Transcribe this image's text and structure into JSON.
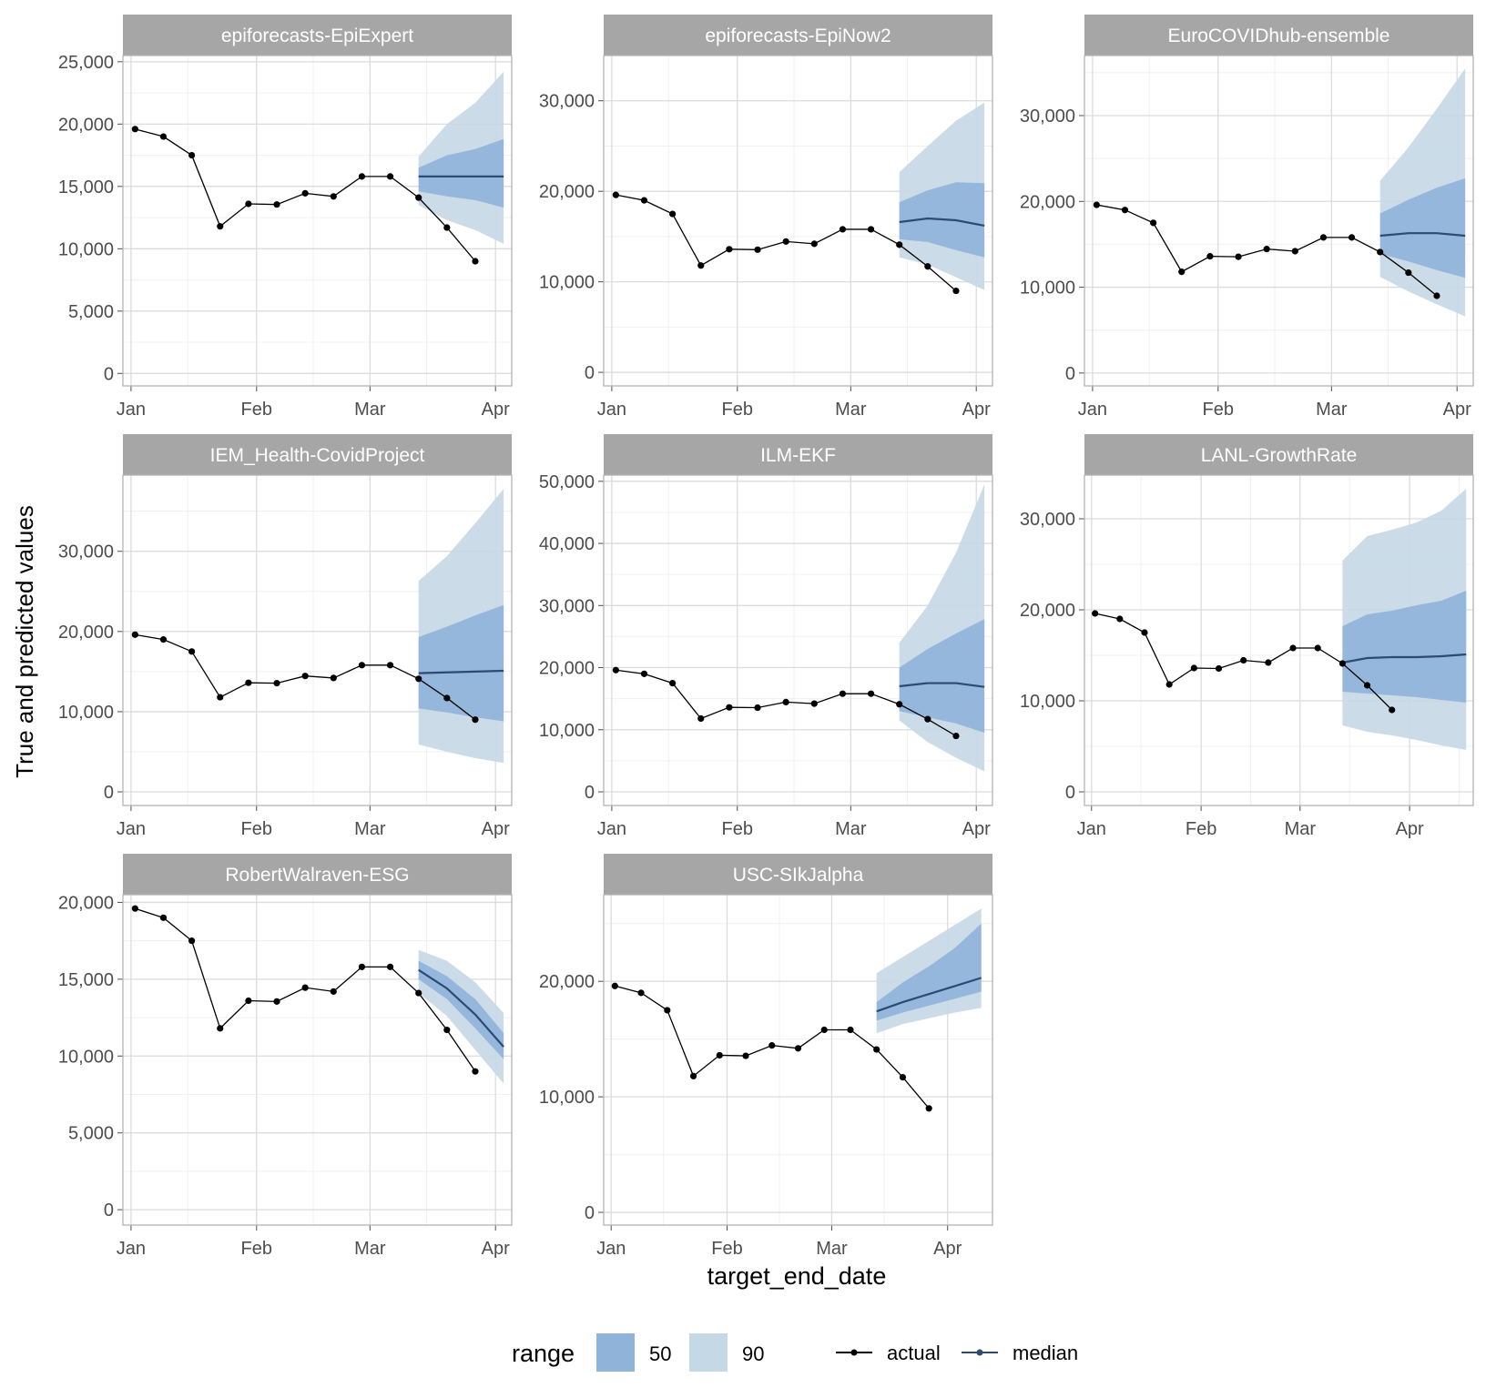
{
  "chart_data": {
    "type": "line",
    "ylabel": "True and predicted values",
    "xlabel": "target_end_date",
    "x_dates": [
      "2021-01-02",
      "2021-01-09",
      "2021-01-16",
      "2021-01-23",
      "2021-01-30",
      "2021-02-06",
      "2021-02-13",
      "2021-02-20",
      "2021-02-27",
      "2021-03-06",
      "2021-03-13",
      "2021-03-20",
      "2021-03-27"
    ],
    "actual": [
      19600,
      19000,
      17500,
      11800,
      13600,
      13550,
      14450,
      14200,
      15800,
      15800,
      14100,
      11700,
      9000
    ],
    "x_ticks": [
      "Jan",
      "Feb",
      "Mar",
      "Apr"
    ],
    "legend": {
      "range_title": "range",
      "range_items": [
        {
          "label": "50",
          "color": "#8fb3d9"
        },
        {
          "label": "90",
          "color": "#c5d8e6"
        }
      ],
      "line_items": [
        {
          "label": "actual",
          "color": "#000000"
        },
        {
          "label": "median",
          "color": "#2c4a72"
        }
      ]
    },
    "colors": {
      "actual": "#000000",
      "median": "#2c4a72",
      "band50": "#8fb3d9",
      "band90": "#c5d8e6",
      "strip": "#a6a6a6"
    },
    "panels": [
      {
        "title": "epiforecasts-EpiExpert",
        "ylim": [
          -1000,
          25500
        ],
        "xlim": [
          "2020-12-30",
          "2021-04-05"
        ],
        "yticks": [
          0,
          5000,
          10000,
          15000,
          20000,
          25000
        ],
        "yticklabels": [
          "0",
          "5,000",
          "10,000",
          "15,000",
          "20,000",
          "25,000"
        ],
        "fc_dates": [
          "2021-03-13",
          "2021-03-20",
          "2021-03-27",
          "2021-04-03"
        ],
        "median": [
          15800,
          15800,
          15800,
          15800
        ],
        "q50": [
          [
            14600,
            16500
          ],
          [
            14200,
            17500
          ],
          [
            13900,
            18000
          ],
          [
            13300,
            18800
          ]
        ],
        "q90": [
          [
            13500,
            17400
          ],
          [
            12300,
            20000
          ],
          [
            11500,
            21700
          ],
          [
            10400,
            24200
          ]
        ]
      },
      {
        "title": "epiforecasts-EpiNow2",
        "ylim": [
          -1500,
          35000
        ],
        "xlim": [
          "2020-12-30",
          "2021-04-05"
        ],
        "yticks": [
          0,
          10000,
          20000,
          30000
        ],
        "yticklabels": [
          "0",
          "10,000",
          "20,000",
          "30,000"
        ],
        "fc_dates": [
          "2021-03-13",
          "2021-03-20",
          "2021-03-27",
          "2021-04-03"
        ],
        "median": [
          16600,
          17000,
          16800,
          16200
        ],
        "q50": [
          [
            14700,
            18800
          ],
          [
            14400,
            20100
          ],
          [
            13500,
            21000
          ],
          [
            12700,
            20900
          ]
        ],
        "q90": [
          [
            12700,
            22100
          ],
          [
            11900,
            25000
          ],
          [
            10500,
            27800
          ],
          [
            9100,
            29800
          ]
        ]
      },
      {
        "title": "EuroCOVIDhub-ensemble",
        "ylim": [
          -1500,
          37000
        ],
        "xlim": [
          "2020-12-30",
          "2021-04-05"
        ],
        "yticks": [
          0,
          10000,
          20000,
          30000
        ],
        "yticklabels": [
          "0",
          "10,000",
          "20,000",
          "30,000"
        ],
        "fc_dates": [
          "2021-03-13",
          "2021-03-20",
          "2021-03-27",
          "2021-04-03"
        ],
        "median": [
          16000,
          16300,
          16300,
          16000
        ],
        "q50": [
          [
            13900,
            18600
          ],
          [
            13000,
            20200
          ],
          [
            12000,
            21600
          ],
          [
            11100,
            22700
          ]
        ],
        "q90": [
          [
            11200,
            22400
          ],
          [
            9500,
            26300
          ],
          [
            8000,
            30800
          ],
          [
            6600,
            35500
          ]
        ]
      },
      {
        "title": "IEM_Health-CovidProject",
        "ylim": [
          -1700,
          39500
        ],
        "xlim": [
          "2020-12-30",
          "2021-04-05"
        ],
        "yticks": [
          0,
          10000,
          20000,
          30000
        ],
        "yticklabels": [
          "0",
          "10,000",
          "20,000",
          "30,000"
        ],
        "fc_dates": [
          "2021-03-13",
          "2021-03-20",
          "2021-03-27",
          "2021-04-03"
        ],
        "median": [
          14800,
          14900,
          15000,
          15100
        ],
        "q50": [
          [
            10400,
            19300
          ],
          [
            9900,
            20600
          ],
          [
            9300,
            22000
          ],
          [
            8800,
            23300
          ]
        ],
        "q90": [
          [
            5900,
            26300
          ],
          [
            5000,
            29400
          ],
          [
            4200,
            33500
          ],
          [
            3600,
            37800
          ]
        ]
      },
      {
        "title": "ILM-EKF",
        "ylim": [
          -2200,
          51000
        ],
        "xlim": [
          "2020-12-30",
          "2021-04-05"
        ],
        "yticks": [
          0,
          10000,
          20000,
          30000,
          40000,
          50000
        ],
        "yticklabels": [
          "0",
          "10,000",
          "20,000",
          "30,000",
          "40,000",
          "50,000"
        ],
        "fc_dates": [
          "2021-03-13",
          "2021-03-20",
          "2021-03-27",
          "2021-04-03"
        ],
        "median": [
          17000,
          17500,
          17500,
          16900
        ],
        "q50": [
          [
            13000,
            20000
          ],
          [
            12000,
            23000
          ],
          [
            11000,
            25500
          ],
          [
            9500,
            27800
          ]
        ],
        "q90": [
          [
            11500,
            24000
          ],
          [
            8000,
            30000
          ],
          [
            5500,
            38500
          ],
          [
            3300,
            49500
          ]
        ]
      },
      {
        "title": "LANL-GrowthRate",
        "ylim": [
          -1500,
          34800
        ],
        "xlim": [
          "2020-12-30",
          "2021-04-19"
        ],
        "yticks": [
          0,
          10000,
          20000,
          30000
        ],
        "yticklabels": [
          "0",
          "10,000",
          "20,000",
          "30,000"
        ],
        "fc_dates": [
          "2021-03-13",
          "2021-03-20",
          "2021-03-27",
          "2021-04-03",
          "2021-04-10",
          "2021-04-17"
        ],
        "median": [
          14200,
          14700,
          14800,
          14800,
          14900,
          15100
        ],
        "q50": [
          [
            11000,
            18200
          ],
          [
            10800,
            19500
          ],
          [
            10600,
            19900
          ],
          [
            10400,
            20500
          ],
          [
            10100,
            21000
          ],
          [
            9800,
            22100
          ]
        ],
        "q90": [
          [
            7300,
            25400
          ],
          [
            6600,
            28100
          ],
          [
            6200,
            28800
          ],
          [
            5700,
            29600
          ],
          [
            5100,
            30900
          ],
          [
            4600,
            33300
          ]
        ]
      },
      {
        "title": "RobertWalraven-ESG",
        "ylim": [
          -1000,
          20500
        ],
        "xlim": [
          "2020-12-30",
          "2021-04-05"
        ],
        "yticks": [
          0,
          5000,
          10000,
          15000,
          20000
        ],
        "yticklabels": [
          "0",
          "5,000",
          "10,000",
          "15,000",
          "20,000"
        ],
        "fc_dates": [
          "2021-03-13",
          "2021-03-20",
          "2021-03-27",
          "2021-04-03"
        ],
        "median": [
          15600,
          14400,
          12700,
          10600
        ],
        "q50": [
          [
            15000,
            16200
          ],
          [
            13700,
            15200
          ],
          [
            11800,
            13700
          ],
          [
            9800,
            11500
          ]
        ],
        "q90": [
          [
            14100,
            16900
          ],
          [
            12600,
            16200
          ],
          [
            10400,
            14800
          ],
          [
            8200,
            12800
          ]
        ]
      },
      {
        "title": "USC-SIkJalpha",
        "ylim": [
          -1100,
          27500
        ],
        "xlim": [
          "2020-12-30",
          "2021-04-13"
        ],
        "yticks": [
          0,
          10000,
          20000
        ],
        "yticklabels": [
          "0",
          "10,000",
          "20,000"
        ],
        "fc_dates": [
          "2021-03-13",
          "2021-03-20",
          "2021-03-27",
          "2021-04-03",
          "2021-04-10"
        ],
        "median": [
          17400,
          18200,
          18900,
          19600,
          20300
        ],
        "q50": [
          [
            16600,
            18200
          ],
          [
            17300,
            19900
          ],
          [
            17900,
            21300
          ],
          [
            18500,
            22900
          ],
          [
            19100,
            25000
          ]
        ],
        "q90": [
          [
            15500,
            20700
          ],
          [
            16300,
            22100
          ],
          [
            16800,
            23500
          ],
          [
            17300,
            24900
          ],
          [
            17700,
            26300
          ]
        ]
      }
    ]
  }
}
